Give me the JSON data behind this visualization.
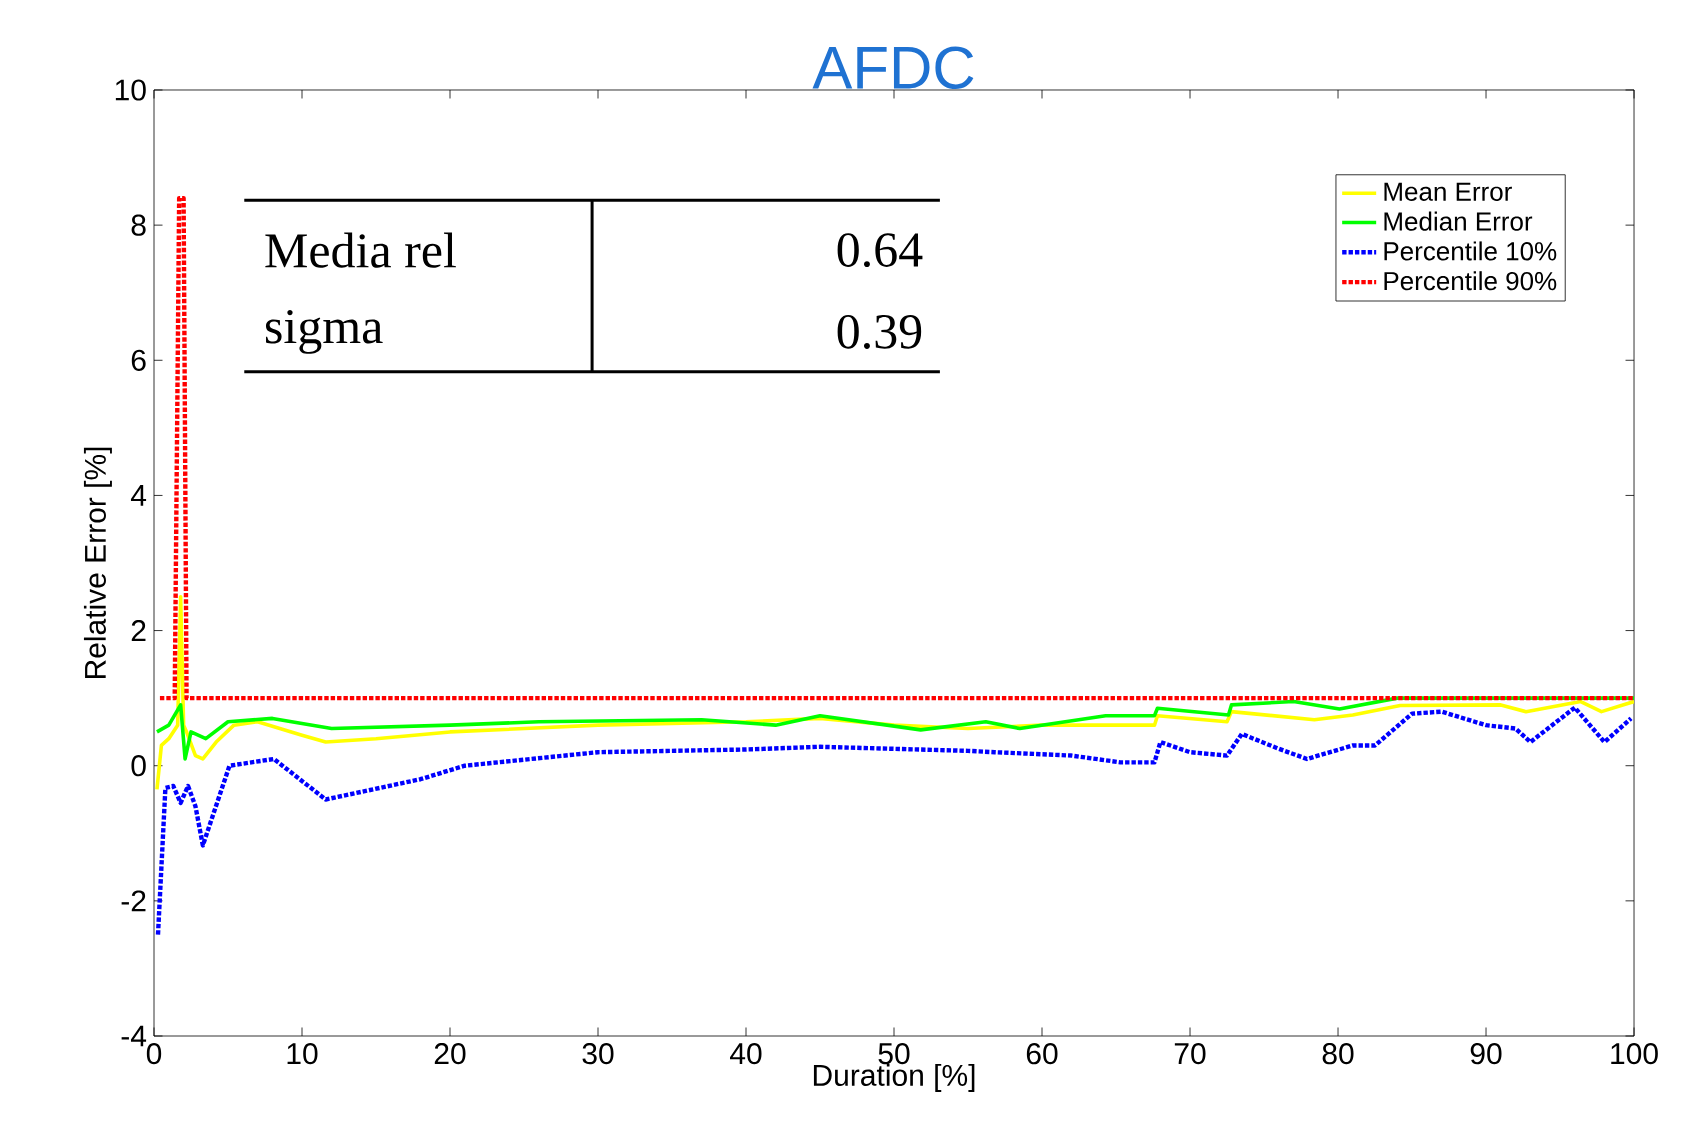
{
  "chart_data": {
    "type": "line",
    "title": "AFDC",
    "xlabel": "Duration [%]",
    "ylabel": "Relative Error [%]",
    "xlim": [
      0,
      100
    ],
    "ylim": [
      -4,
      10
    ],
    "xticks": [
      0,
      10,
      20,
      30,
      40,
      50,
      60,
      70,
      80,
      90,
      100
    ],
    "yticks": [
      -4,
      -2,
      0,
      2,
      4,
      6,
      8,
      10
    ],
    "grid": false,
    "legend": "top right",
    "annotations": [
      "Media rel",
      "0.64",
      "sigma",
      "0.39"
    ],
    "series": [
      {
        "name": "Mean Error",
        "color": "#ffff00",
        "line_style": "solid",
        "x": [
          0.2,
          0.5,
          1,
          1.6,
          1.8,
          2.0,
          2.2,
          2.8,
          3.3,
          4.2,
          5.4,
          7,
          10,
          11.6,
          15,
          20,
          30,
          40,
          45,
          50,
          55,
          60,
          65.3,
          67.6,
          67.8,
          72.5,
          72.8,
          78.4,
          81,
          84.2,
          91,
          92.7,
          96.4,
          97.8,
          100
        ],
        "values": [
          -0.35,
          0.3,
          0.4,
          0.6,
          2.5,
          0.6,
          0.5,
          0.15,
          0.1,
          0.35,
          0.6,
          0.65,
          0.45,
          0.35,
          0.4,
          0.5,
          0.6,
          0.65,
          0.7,
          0.6,
          0.55,
          0.6,
          0.6,
          0.6,
          0.74,
          0.65,
          0.8,
          0.68,
          0.75,
          0.89,
          0.9,
          0.8,
          0.95,
          0.8,
          0.95
        ]
      },
      {
        "name": "Median Error",
        "color": "#00ff00",
        "line_style": "solid",
        "x": [
          0.2,
          1,
          1.8,
          2.1,
          2.5,
          3.5,
          5,
          8,
          12,
          20,
          26,
          37,
          42,
          45,
          51.8,
          56.2,
          58.5,
          64.3,
          67.6,
          67.8,
          72.6,
          72.8,
          77,
          80.1,
          84,
          100
        ],
        "values": [
          0.5,
          0.6,
          0.9,
          0.1,
          0.5,
          0.4,
          0.65,
          0.7,
          0.55,
          0.6,
          0.65,
          0.68,
          0.6,
          0.74,
          0.53,
          0.65,
          0.55,
          0.74,
          0.74,
          0.85,
          0.75,
          0.9,
          0.95,
          0.84,
          1.0,
          1.0
        ]
      },
      {
        "name": "Percentile 10%",
        "color": "#0000ff",
        "line_style": "dotted",
        "x": [
          0.27,
          0.77,
          1.3,
          1.8,
          2.3,
          2.8,
          3.3,
          5.1,
          8.1,
          11.6,
          18,
          21,
          30,
          40,
          45,
          55,
          56.8,
          62,
          65.3,
          67.6,
          68,
          70,
          72.5,
          73.5,
          76,
          77.9,
          81,
          82.5,
          85,
          87,
          90,
          92,
          93,
          96,
          98,
          99.8
        ],
        "values": [
          -2.5,
          -0.33,
          -0.3,
          -0.55,
          -0.3,
          -0.6,
          -1.18,
          0.0,
          0.1,
          -0.5,
          -0.2,
          0.0,
          0.2,
          0.24,
          0.28,
          0.22,
          0.2,
          0.15,
          0.05,
          0.05,
          0.35,
          0.2,
          0.15,
          0.47,
          0.25,
          0.1,
          0.3,
          0.3,
          0.77,
          0.8,
          0.6,
          0.55,
          0.35,
          0.86,
          0.35,
          0.7
        ]
      },
      {
        "name": "Percentile 90%",
        "color": "#ff0000",
        "line_style": "dotted",
        "x": [
          0.4,
          1.4,
          1.7,
          2.0,
          2.2,
          100
        ],
        "values": [
          1,
          1,
          8.4,
          8.4,
          1,
          1
        ]
      }
    ]
  }
}
